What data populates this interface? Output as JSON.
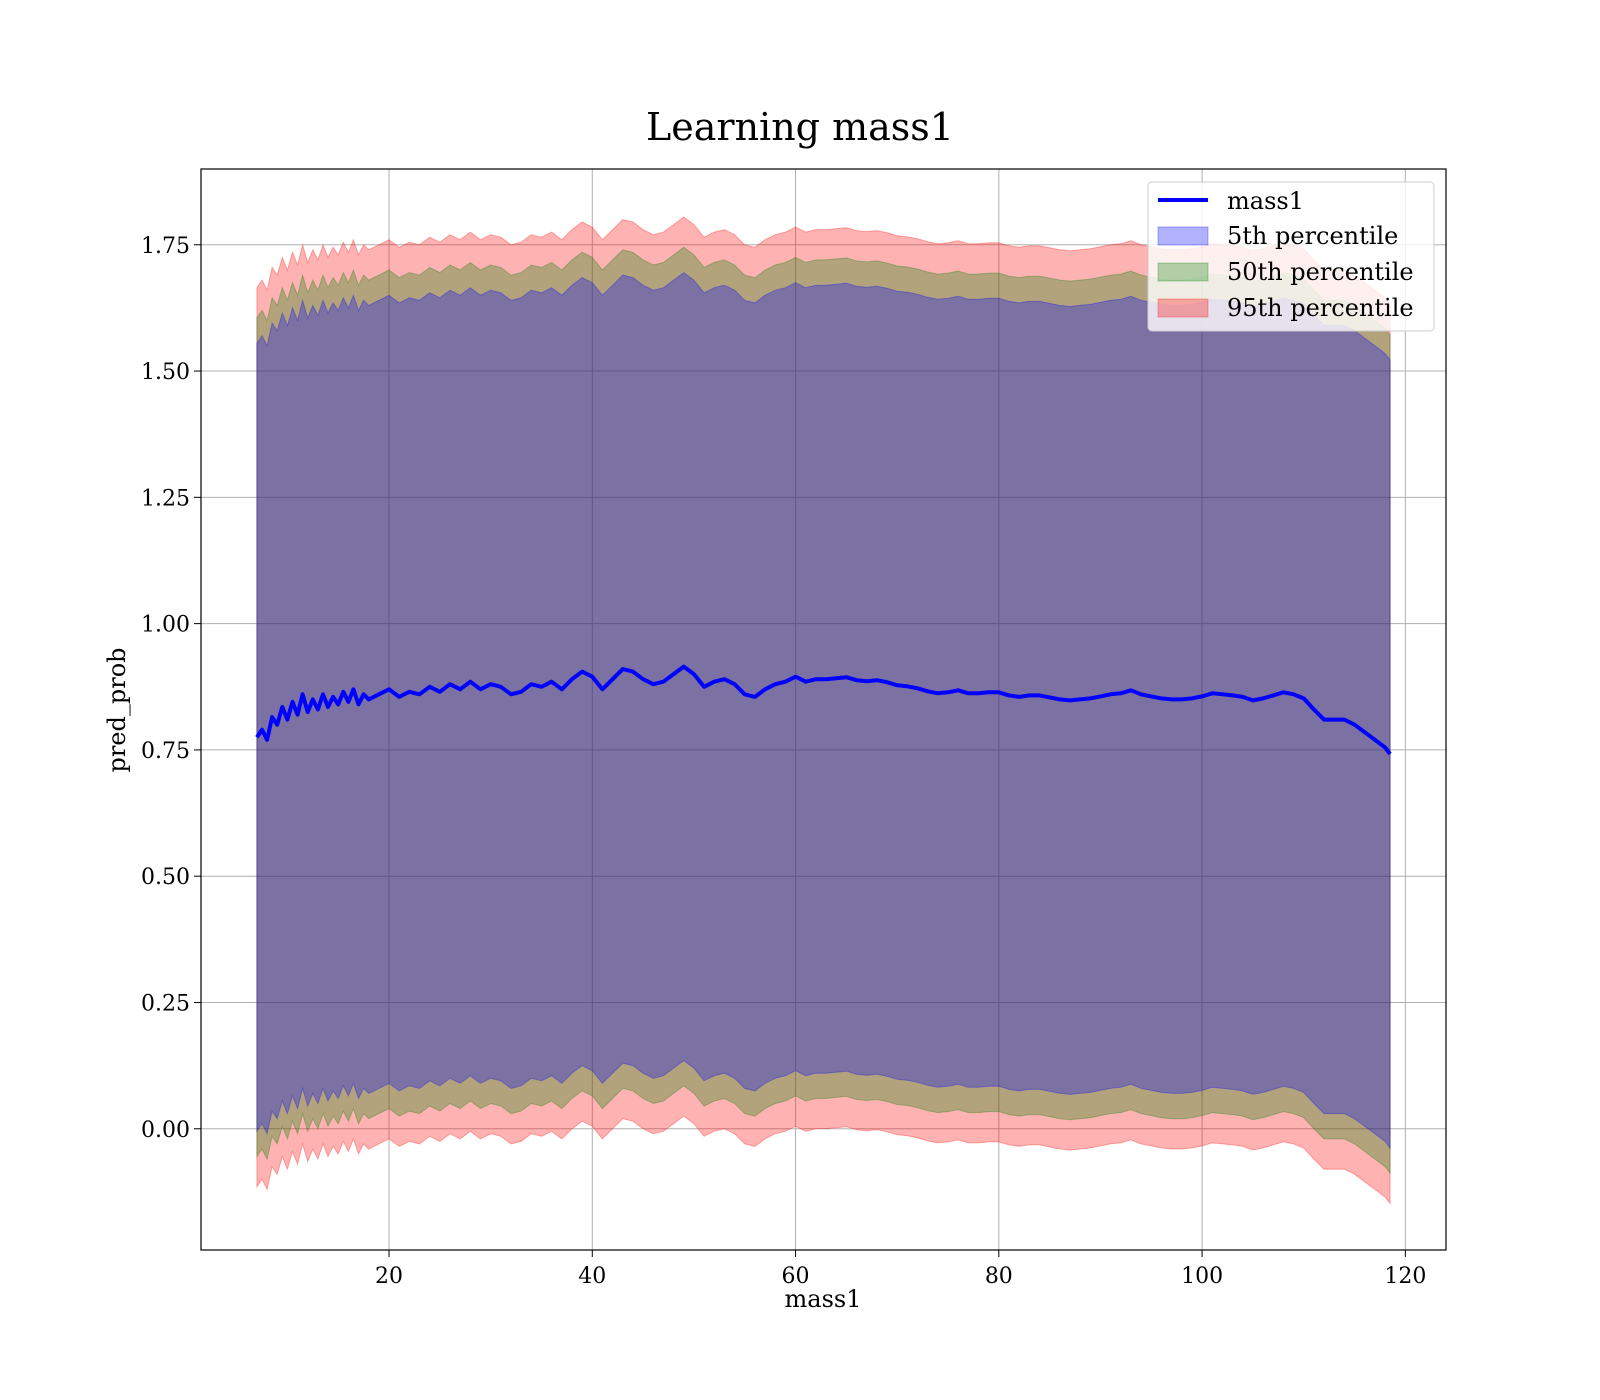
{
  "chart_data": {
    "type": "line",
    "title": "Learning mass1",
    "xlabel": "mass1",
    "ylabel": "pred_prob",
    "xlim": [
      1.5,
      124.0
    ],
    "ylim": [
      -0.24,
      1.9
    ],
    "xticks": [
      20,
      40,
      60,
      80,
      100,
      120
    ],
    "yticks": [
      0.0,
      0.25,
      0.5,
      0.75,
      1.0,
      1.25,
      1.5,
      1.75
    ],
    "xtick_labels": [
      "20",
      "40",
      "60",
      "80",
      "100",
      "120"
    ],
    "ytick_labels": [
      "0.00",
      "0.25",
      "0.50",
      "0.75",
      "1.00",
      "1.25",
      "1.50",
      "1.75"
    ],
    "grid": true,
    "legend_position": "top-right",
    "legend": [
      {
        "label": "mass1",
        "kind": "line",
        "color": "#0000ff"
      },
      {
        "label": "5th percentile",
        "kind": "patch",
        "color": "#0000ff"
      },
      {
        "label": "50th percentile",
        "kind": "patch",
        "color": "#008000"
      },
      {
        "label": "95th percentile",
        "kind": "patch",
        "color": "#ff0000"
      }
    ],
    "line": {
      "name": "mass1",
      "color": "#0000ff",
      "x": [
        7,
        7.5,
        8,
        8.5,
        9,
        9.5,
        10,
        10.5,
        11,
        11.5,
        12,
        12.5,
        13,
        13.5,
        14,
        14.5,
        15,
        15.5,
        16,
        16.5,
        17,
        17.5,
        18,
        19,
        20,
        21,
        22,
        23,
        24,
        25,
        26,
        27,
        28,
        29,
        30,
        31,
        32,
        33,
        34,
        35,
        36,
        37,
        38,
        39,
        40,
        41,
        42,
        43,
        44,
        45,
        46,
        47,
        48,
        49,
        50,
        51,
        52,
        53,
        54,
        55,
        56,
        57,
        58,
        59,
        60,
        61,
        62,
        63,
        64,
        65,
        66,
        67,
        68,
        69,
        70,
        71,
        72,
        73,
        74,
        75,
        76,
        77,
        78,
        79,
        80,
        81,
        82,
        83,
        84,
        85,
        86,
        87,
        88,
        89,
        90,
        91,
        92,
        93,
        94,
        95,
        96,
        97,
        98,
        99,
        100,
        101,
        102,
        103,
        104,
        105,
        106,
        107,
        108,
        109,
        110,
        111,
        112,
        113,
        114,
        115,
        116,
        117,
        118,
        118.5
      ],
      "y": [
        0.775,
        0.79,
        0.77,
        0.815,
        0.8,
        0.835,
        0.81,
        0.845,
        0.82,
        0.86,
        0.825,
        0.85,
        0.83,
        0.86,
        0.835,
        0.855,
        0.84,
        0.865,
        0.845,
        0.87,
        0.84,
        0.86,
        0.85,
        0.86,
        0.87,
        0.855,
        0.865,
        0.86,
        0.875,
        0.865,
        0.88,
        0.87,
        0.885,
        0.87,
        0.88,
        0.875,
        0.86,
        0.865,
        0.88,
        0.875,
        0.885,
        0.87,
        0.89,
        0.905,
        0.895,
        0.87,
        0.89,
        0.91,
        0.905,
        0.89,
        0.88,
        0.885,
        0.9,
        0.915,
        0.9,
        0.875,
        0.885,
        0.89,
        0.88,
        0.86,
        0.855,
        0.87,
        0.88,
        0.885,
        0.895,
        0.885,
        0.89,
        0.89,
        0.892,
        0.894,
        0.888,
        0.886,
        0.888,
        0.884,
        0.878,
        0.876,
        0.872,
        0.866,
        0.862,
        0.864,
        0.868,
        0.862,
        0.862,
        0.864,
        0.864,
        0.858,
        0.855,
        0.858,
        0.858,
        0.854,
        0.85,
        0.848,
        0.85,
        0.852,
        0.856,
        0.86,
        0.862,
        0.868,
        0.86,
        0.856,
        0.852,
        0.85,
        0.85,
        0.852,
        0.856,
        0.862,
        0.86,
        0.858,
        0.855,
        0.848,
        0.852,
        0.858,
        0.864,
        0.86,
        0.852,
        0.83,
        0.81,
        0.81,
        0.81,
        0.8,
        0.785,
        0.77,
        0.755,
        0.742
      ]
    },
    "bands": [
      {
        "name": "95th percentile",
        "color": "#ff0000",
        "opacity": 0.3,
        "half_width": 0.89
      },
      {
        "name": "50th percentile",
        "color": "#008000",
        "opacity": 0.3,
        "half_width": 0.83
      },
      {
        "name": "5th percentile",
        "color": "#0000ff",
        "opacity": 0.3,
        "half_width": 0.78
      }
    ]
  }
}
